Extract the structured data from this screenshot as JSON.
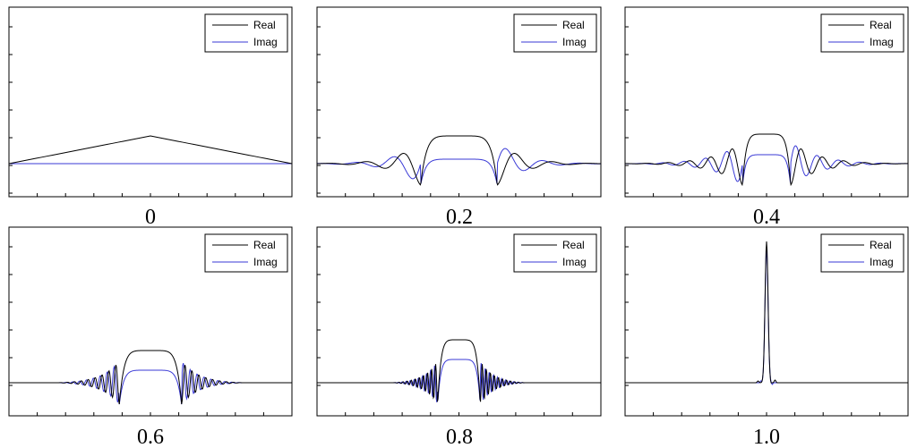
{
  "chart_data": [
    {
      "type": "line",
      "label": "0",
      "series": [
        {
          "name": "Real",
          "color": "#000000"
        },
        {
          "name": "Imag",
          "color": "#3a3ad6"
        }
      ]
    },
    {
      "type": "line",
      "label": "0.2",
      "series": [
        {
          "name": "Real",
          "color": "#000000"
        },
        {
          "name": "Imag",
          "color": "#3a3ad6"
        }
      ]
    },
    {
      "type": "line",
      "label": "0.4",
      "series": [
        {
          "name": "Real",
          "color": "#000000"
        },
        {
          "name": "Imag",
          "color": "#3a3ad6"
        }
      ]
    },
    {
      "type": "line",
      "label": "0.6",
      "series": [
        {
          "name": "Real",
          "color": "#000000"
        },
        {
          "name": "Imag",
          "color": "#3a3ad6"
        }
      ]
    },
    {
      "type": "line",
      "label": "0.8",
      "series": [
        {
          "name": "Real",
          "color": "#000000"
        },
        {
          "name": "Imag",
          "color": "#3a3ad6"
        }
      ]
    },
    {
      "type": "line",
      "label": "1.0",
      "series": [
        {
          "name": "Real",
          "color": "#000000"
        },
        {
          "name": "Imag",
          "color": "#3a3ad6"
        }
      ]
    }
  ]
}
